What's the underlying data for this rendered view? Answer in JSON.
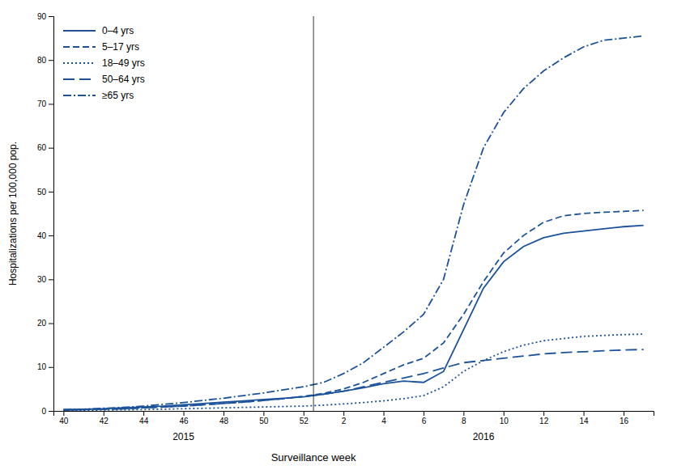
{
  "chart_data": {
    "type": "line",
    "ylabel": "Hospitalizations per 100,000 pop.",
    "xlabel": "Surveillance week",
    "categories": [
      "40",
      null,
      "42",
      null,
      "44",
      null,
      "46",
      null,
      "48",
      null,
      "50",
      null,
      "52",
      null,
      "2",
      null,
      "4",
      null,
      "6",
      null,
      "8",
      null,
      "10",
      null,
      "12",
      null,
      "14",
      null,
      "16",
      null
    ],
    "series": [
      {
        "name": "0–4 yrs",
        "color": "#1B5299",
        "line_style": "solid",
        "values": [
          0.3,
          0.4,
          0.5,
          0.7,
          0.9,
          1.1,
          1.4,
          1.7,
          2.0,
          2.3,
          2.6,
          2.9,
          3.2,
          3.8,
          4.5,
          5.3,
          6.2,
          6.8,
          6.5,
          9.0,
          18.5,
          28.0,
          34.0,
          37.5,
          39.5,
          40.5,
          41.0,
          41.5,
          42.0,
          42.3
        ]
      },
      {
        "name": "5–17 yrs",
        "color": "#1B5299",
        "line_style": "dashed",
        "values": [
          0.2,
          0.3,
          0.4,
          0.5,
          0.7,
          0.9,
          1.1,
          1.4,
          1.7,
          2.0,
          2.4,
          2.8,
          3.3,
          4.0,
          5.0,
          6.5,
          8.5,
          10.5,
          12.0,
          15.5,
          22.0,
          29.5,
          36.0,
          40.0,
          43.0,
          44.5,
          45.0,
          45.3,
          45.5,
          45.7
        ]
      },
      {
        "name": "18–49 yrs",
        "color": "#1B5299",
        "line_style": "dotted",
        "values": [
          0.1,
          0.15,
          0.2,
          0.25,
          0.3,
          0.4,
          0.5,
          0.6,
          0.7,
          0.8,
          0.9,
          1.0,
          1.1,
          1.3,
          1.6,
          1.9,
          2.3,
          2.8,
          3.5,
          5.5,
          9.0,
          11.5,
          13.5,
          15.0,
          16.0,
          16.5,
          17.0,
          17.2,
          17.4,
          17.5
        ]
      },
      {
        "name": "50–64 yrs",
        "color": "#1B5299",
        "line_style": "long_dash",
        "values": [
          0.2,
          0.3,
          0.4,
          0.5,
          0.7,
          0.9,
          1.1,
          1.4,
          1.7,
          2.0,
          2.4,
          2.8,
          3.3,
          3.8,
          4.5,
          5.5,
          6.5,
          7.5,
          8.5,
          9.8,
          11.0,
          11.5,
          12.0,
          12.5,
          13.0,
          13.3,
          13.5,
          13.7,
          13.9,
          14.0
        ]
      },
      {
        "name": "≥65 yrs",
        "color": "#1B5299",
        "line_style": "dashdot",
        "values": [
          0.3,
          0.4,
          0.6,
          0.8,
          1.1,
          1.5,
          1.9,
          2.4,
          2.9,
          3.5,
          4.1,
          4.8,
          5.5,
          6.5,
          8.5,
          11.0,
          14.5,
          18.0,
          22.0,
          30.0,
          47.0,
          60.0,
          68.0,
          73.5,
          77.5,
          80.5,
          83.0,
          84.5,
          85.0,
          85.5
        ]
      }
    ],
    "annotations": [
      {
        "text": "2015",
        "x": 6
      },
      {
        "text": "2016",
        "x": 21
      }
    ],
    "vlines": [
      12.5
    ],
    "ylim": [
      0,
      90
    ],
    "yticks": [
      0,
      10,
      20,
      30,
      40,
      50,
      60,
      70,
      80,
      90
    ],
    "grid": false,
    "legend": "top-left"
  }
}
